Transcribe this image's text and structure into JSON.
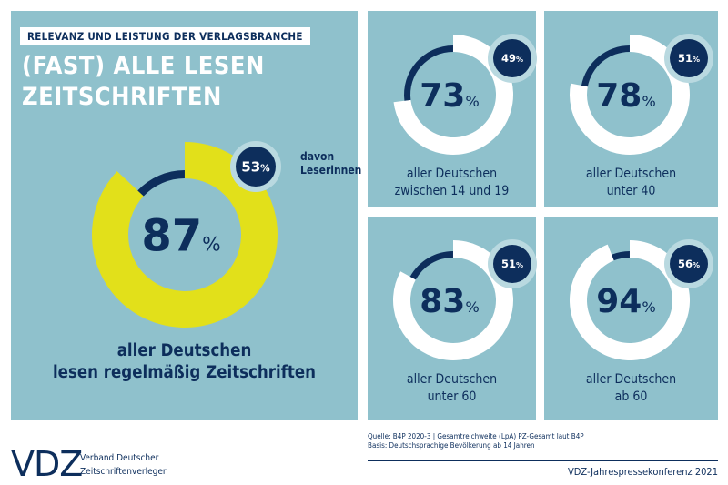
{
  "header": {
    "kicker": "RELEVANZ UND LEISTUNG DER VERLAGSBRANCHE",
    "title_line1": "(FAST) ALLE LESEN",
    "title_line2": "ZEITSCHRIFTEN"
  },
  "colors": {
    "panel": "#8fc1cc",
    "navy": "#0d2e5c",
    "yellow": "#e2e01a",
    "white": "#ffffff"
  },
  "chart_data": [
    {
      "type": "donut",
      "value": 87,
      "unit": "%",
      "badge": 53,
      "badge_label": "davon Leserinnen",
      "caption_line1": "aller Deutschen",
      "caption_line2": "lesen regelmäßig Zeitschriften"
    },
    {
      "type": "donut",
      "value": 73,
      "unit": "%",
      "badge": 49,
      "caption_line1": "aller Deutschen",
      "caption_line2": "zwischen 14 und 19"
    },
    {
      "type": "donut",
      "value": 78,
      "unit": "%",
      "badge": 51,
      "caption_line1": "aller Deutschen",
      "caption_line2": "unter 40"
    },
    {
      "type": "donut",
      "value": 83,
      "unit": "%",
      "badge": 51,
      "caption_line1": "aller Deutschen",
      "caption_line2": "unter 60"
    },
    {
      "type": "donut",
      "value": 94,
      "unit": "%",
      "badge": 56,
      "caption_line1": "aller Deutschen",
      "caption_line2": "ab 60"
    }
  ],
  "footer": {
    "source": "Quelle: B4P 2020-3 | Gesamtreichweite (LpA) PZ-Gesamt laut B4P",
    "basis": "Basis: Deutschsprachige Bevölkerung ab 14 Jahren",
    "logo": "VDZ",
    "org_line1": "Verband Deutscher",
    "org_line2": "Zeitschriftenverleger",
    "conference": "VDZ-Jahrespressekonferenz 2021"
  }
}
